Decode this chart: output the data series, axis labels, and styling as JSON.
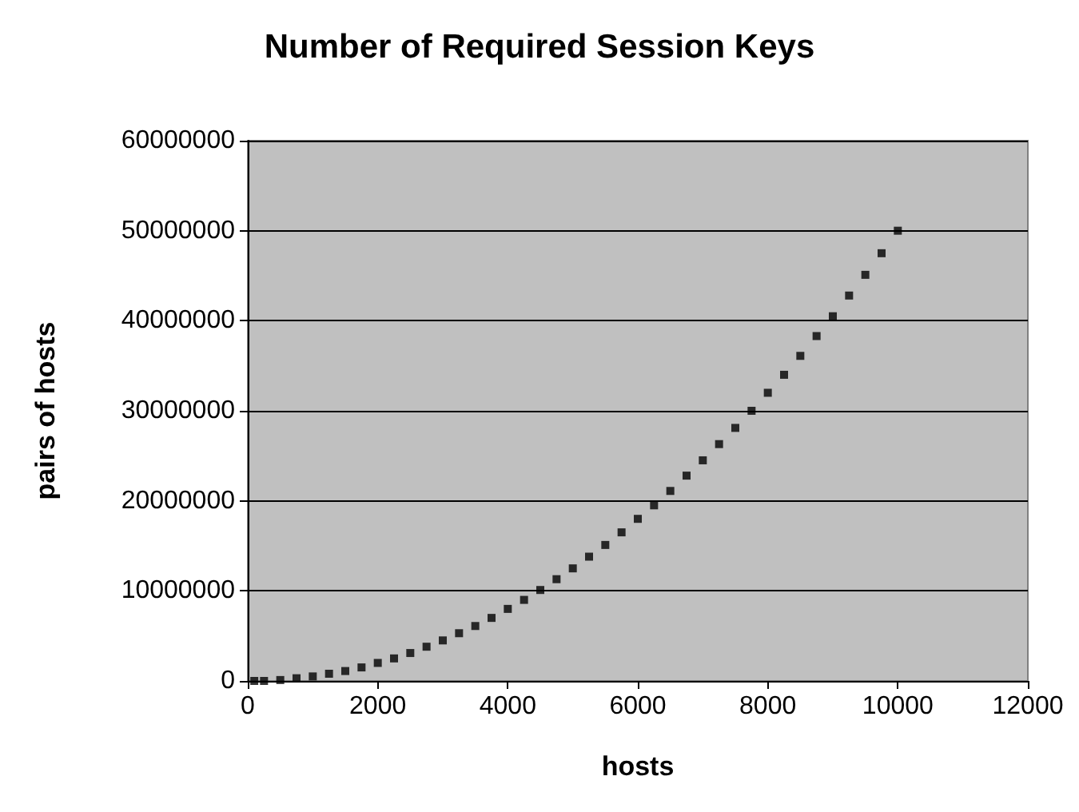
{
  "chart_data": {
    "type": "scatter",
    "title": "Number of Required Session Keys",
    "xlabel": "hosts",
    "ylabel": "pairs of hosts",
    "x": [
      100,
      250,
      500,
      750,
      1000,
      1250,
      1500,
      1750,
      2000,
      2250,
      2500,
      2750,
      3000,
      3250,
      3500,
      3750,
      4000,
      4250,
      4500,
      4750,
      5000,
      5250,
      5500,
      5750,
      6000,
      6250,
      6500,
      6750,
      7000,
      7250,
      7500,
      7750,
      8000,
      8250,
      8500,
      8750,
      9000,
      9250,
      9500,
      9750,
      10000
    ],
    "values": [
      0,
      0,
      100000,
      300000,
      500000,
      800000,
      1100000,
      1500000,
      2000000,
      2500000,
      3100000,
      3800000,
      4500000,
      5300000,
      6100000,
      7000000,
      8000000,
      9000000,
      10100000,
      11300000,
      12500000,
      13800000,
      15100000,
      16500000,
      18000000,
      19500000,
      21100000,
      22800000,
      24500000,
      26300000,
      28100000,
      30000000,
      32000000,
      34000000,
      36100000,
      38300000,
      40500000,
      42800000,
      45100000,
      47500000,
      50000000
    ],
    "color": "#000000",
    "marker": "square",
    "xlim": [
      0,
      12000
    ],
    "xticks": [
      0,
      2000,
      4000,
      6000,
      8000,
      10000,
      12000
    ],
    "ylim": [
      0,
      60000000
    ],
    "yticks": [
      0,
      10000000,
      20000000,
      30000000,
      40000000,
      50000000,
      60000000
    ],
    "grid": "y"
  }
}
